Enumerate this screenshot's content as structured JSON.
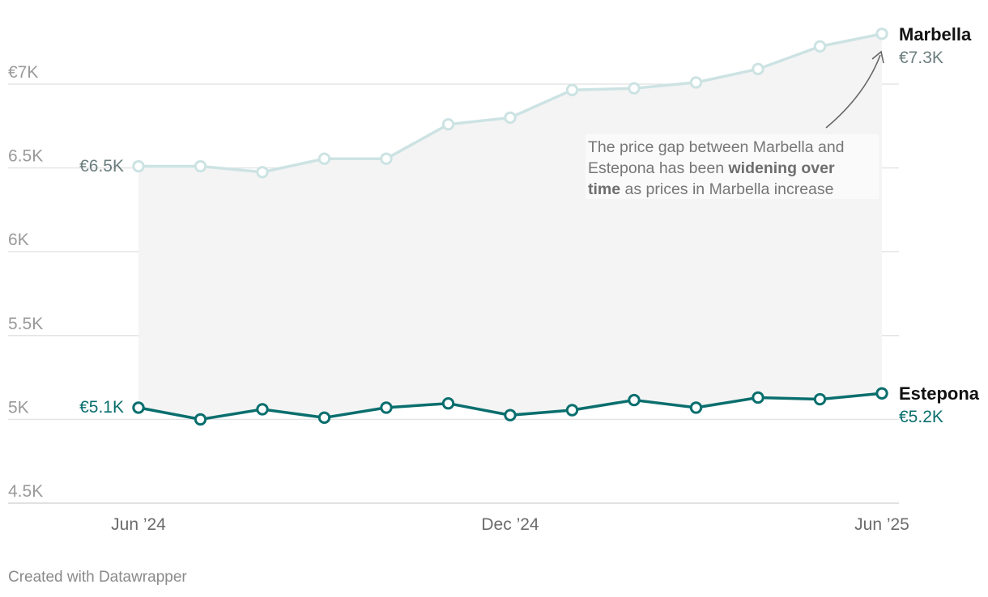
{
  "chart_data": {
    "type": "line",
    "x": [
      "Jun '24",
      "Jul '24",
      "Aug '24",
      "Sep '24",
      "Oct '24",
      "Nov '24",
      "Dec '24",
      "Jan '25",
      "Feb '25",
      "Mar '25",
      "Apr '25",
      "May '25",
      "Jun '25"
    ],
    "x_ticks": [
      "Jun ’24",
      "Dec ’24",
      "Jun ’25"
    ],
    "y_ticks": [
      "4.5K",
      "5K",
      "5.5K",
      "6K",
      "6.5K",
      "€7K"
    ],
    "y_tick_values": [
      4500,
      5000,
      5500,
      6000,
      6500,
      7000
    ],
    "ylim": [
      4500,
      7450
    ],
    "grid": true,
    "series": [
      {
        "name": "Marbella",
        "color": "#cde3e3",
        "values": [
          6510,
          6510,
          6475,
          6555,
          6555,
          6760,
          6800,
          6965,
          6975,
          7010,
          7090,
          7225,
          7300
        ],
        "start_label": "€6.5K",
        "end_label": "€7.3K",
        "end_label_color": "#6b7e7e"
      },
      {
        "name": "Estepona",
        "color": "#0a6e6e",
        "values": [
          5070,
          5000,
          5060,
          5010,
          5070,
          5095,
          5025,
          5055,
          5115,
          5070,
          5130,
          5120,
          5155
        ],
        "start_label": "€5.1K",
        "end_label": "€5.2K",
        "end_label_color": "#0a6e6e"
      }
    ],
    "area_between_color": "#f4f4f4",
    "annotation": {
      "line1": "The price gap between Marbella and",
      "line2_a": "Estepona has been ",
      "line2_b": "widening over",
      "line3_a": "time",
      "line3_b": " as prices in Marbella increase"
    }
  },
  "credit": "Created with Datawrapper"
}
